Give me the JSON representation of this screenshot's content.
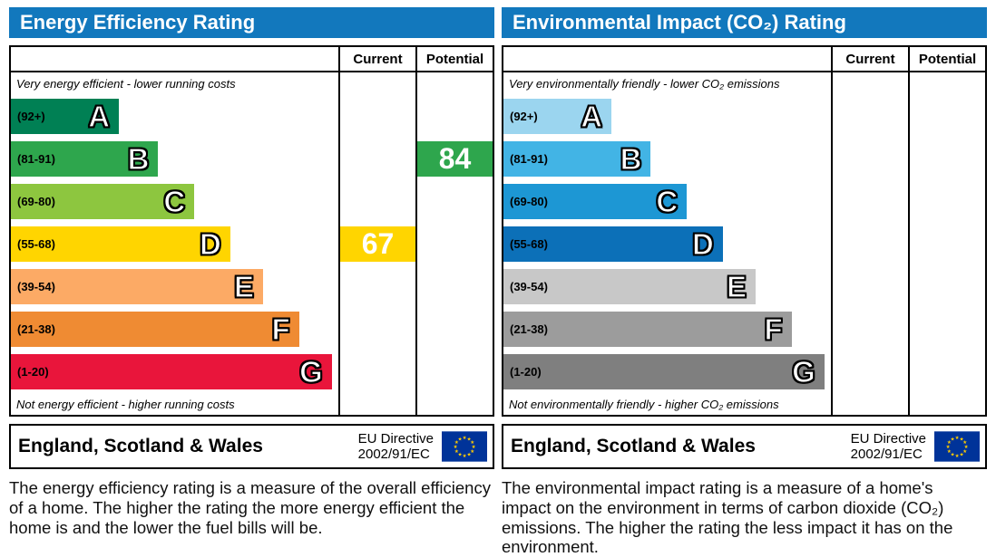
{
  "theme": {
    "header_bg": "#1278bd",
    "border_color": "#000000",
    "eu_flag_blue": "#003399",
    "eu_flag_star": "#ffcc00"
  },
  "panels": [
    {
      "title": "Energy Efficiency Rating",
      "columns": {
        "current": "Current",
        "potential": "Potential"
      },
      "top_note": "Very energy efficient - lower running costs",
      "bottom_note": "Not energy efficient - higher running costs",
      "bands": [
        {
          "range": "(92+)",
          "letter": "A",
          "color": "#008054",
          "width_pct": 33
        },
        {
          "range": "(81-91)",
          "letter": "B",
          "color": "#2ea64d",
          "width_pct": 45
        },
        {
          "range": "(69-80)",
          "letter": "C",
          "color": "#8dc63f",
          "width_pct": 56
        },
        {
          "range": "(55-68)",
          "letter": "D",
          "color": "#ffd500",
          "width_pct": 67
        },
        {
          "range": "(39-54)",
          "letter": "E",
          "color": "#fcaa65",
          "width_pct": 77
        },
        {
          "range": "(21-38)",
          "letter": "F",
          "color": "#ef8b33",
          "width_pct": 88
        },
        {
          "range": "(1-20)",
          "letter": "G",
          "color": "#e9153b",
          "width_pct": 98
        }
      ],
      "current": {
        "value": "67",
        "band": "D",
        "color": "#ffd500"
      },
      "potential": {
        "value": "84",
        "band": "B",
        "color": "#2ea64d"
      },
      "footer": {
        "region": "England, Scotland & Wales",
        "directive": [
          "EU Directive",
          "2002/91/EC"
        ]
      },
      "description": "The energy efficiency rating is a measure of the overall efficiency of a home. The higher the rating the more energy efficient the home is and the lower the fuel bills will be."
    },
    {
      "title": "Environmental Impact (CO₂) Rating",
      "columns": {
        "current": "Current",
        "potential": "Potential"
      },
      "top_note": "Very environmentally friendly - lower CO₂ emissions",
      "bottom_note": "Not environmentally friendly - higher CO₂ emissions",
      "bands": [
        {
          "range": "(92+)",
          "letter": "A",
          "color": "#9bd5ef",
          "width_pct": 33
        },
        {
          "range": "(81-91)",
          "letter": "B",
          "color": "#42b4e5",
          "width_pct": 45
        },
        {
          "range": "(69-80)",
          "letter": "C",
          "color": "#1d97d4",
          "width_pct": 56
        },
        {
          "range": "(55-68)",
          "letter": "D",
          "color": "#0c70b8",
          "width_pct": 67
        },
        {
          "range": "(39-54)",
          "letter": "E",
          "color": "#c8c8c8",
          "width_pct": 77
        },
        {
          "range": "(21-38)",
          "letter": "F",
          "color": "#9c9c9c",
          "width_pct": 88
        },
        {
          "range": "(1-20)",
          "letter": "G",
          "color": "#7f7f7f",
          "width_pct": 98
        }
      ],
      "current": null,
      "potential": null,
      "footer": {
        "region": "England, Scotland & Wales",
        "directive": [
          "EU Directive",
          "2002/91/EC"
        ]
      },
      "description": "The environmental impact rating is a measure of a home's impact on the environment in terms of carbon dioxide (CO₂) emissions. The higher the rating the less impact it has on the environment."
    }
  ],
  "chart_data": [
    {
      "type": "bar",
      "title": "Energy Efficiency Rating",
      "categories": [
        "A (92+)",
        "B (81-91)",
        "C (69-80)",
        "D (55-68)",
        "E (39-54)",
        "F (21-38)",
        "G (1-20)"
      ],
      "values": [
        33,
        45,
        56,
        67,
        77,
        88,
        98
      ],
      "values_note": "relative bar widths (%), bands are fixed EPC scale",
      "current_rating": 67,
      "current_band": "D",
      "potential_rating": 84,
      "potential_band": "B",
      "legend": [
        "Current",
        "Potential"
      ],
      "region": "England, Scotland & Wales",
      "directive": "EU Directive 2002/91/EC"
    },
    {
      "type": "bar",
      "title": "Environmental Impact (CO₂) Rating",
      "categories": [
        "A (92+)",
        "B (81-91)",
        "C (69-80)",
        "D (55-68)",
        "E (39-54)",
        "F (21-38)",
        "G (1-20)"
      ],
      "values": [
        33,
        45,
        56,
        67,
        77,
        88,
        98
      ],
      "values_note": "relative bar widths (%), bands are fixed EPC scale",
      "current_rating": null,
      "current_band": null,
      "potential_rating": null,
      "potential_band": null,
      "legend": [
        "Current",
        "Potential"
      ],
      "region": "England, Scotland & Wales",
      "directive": "EU Directive 2002/91/EC"
    }
  ]
}
